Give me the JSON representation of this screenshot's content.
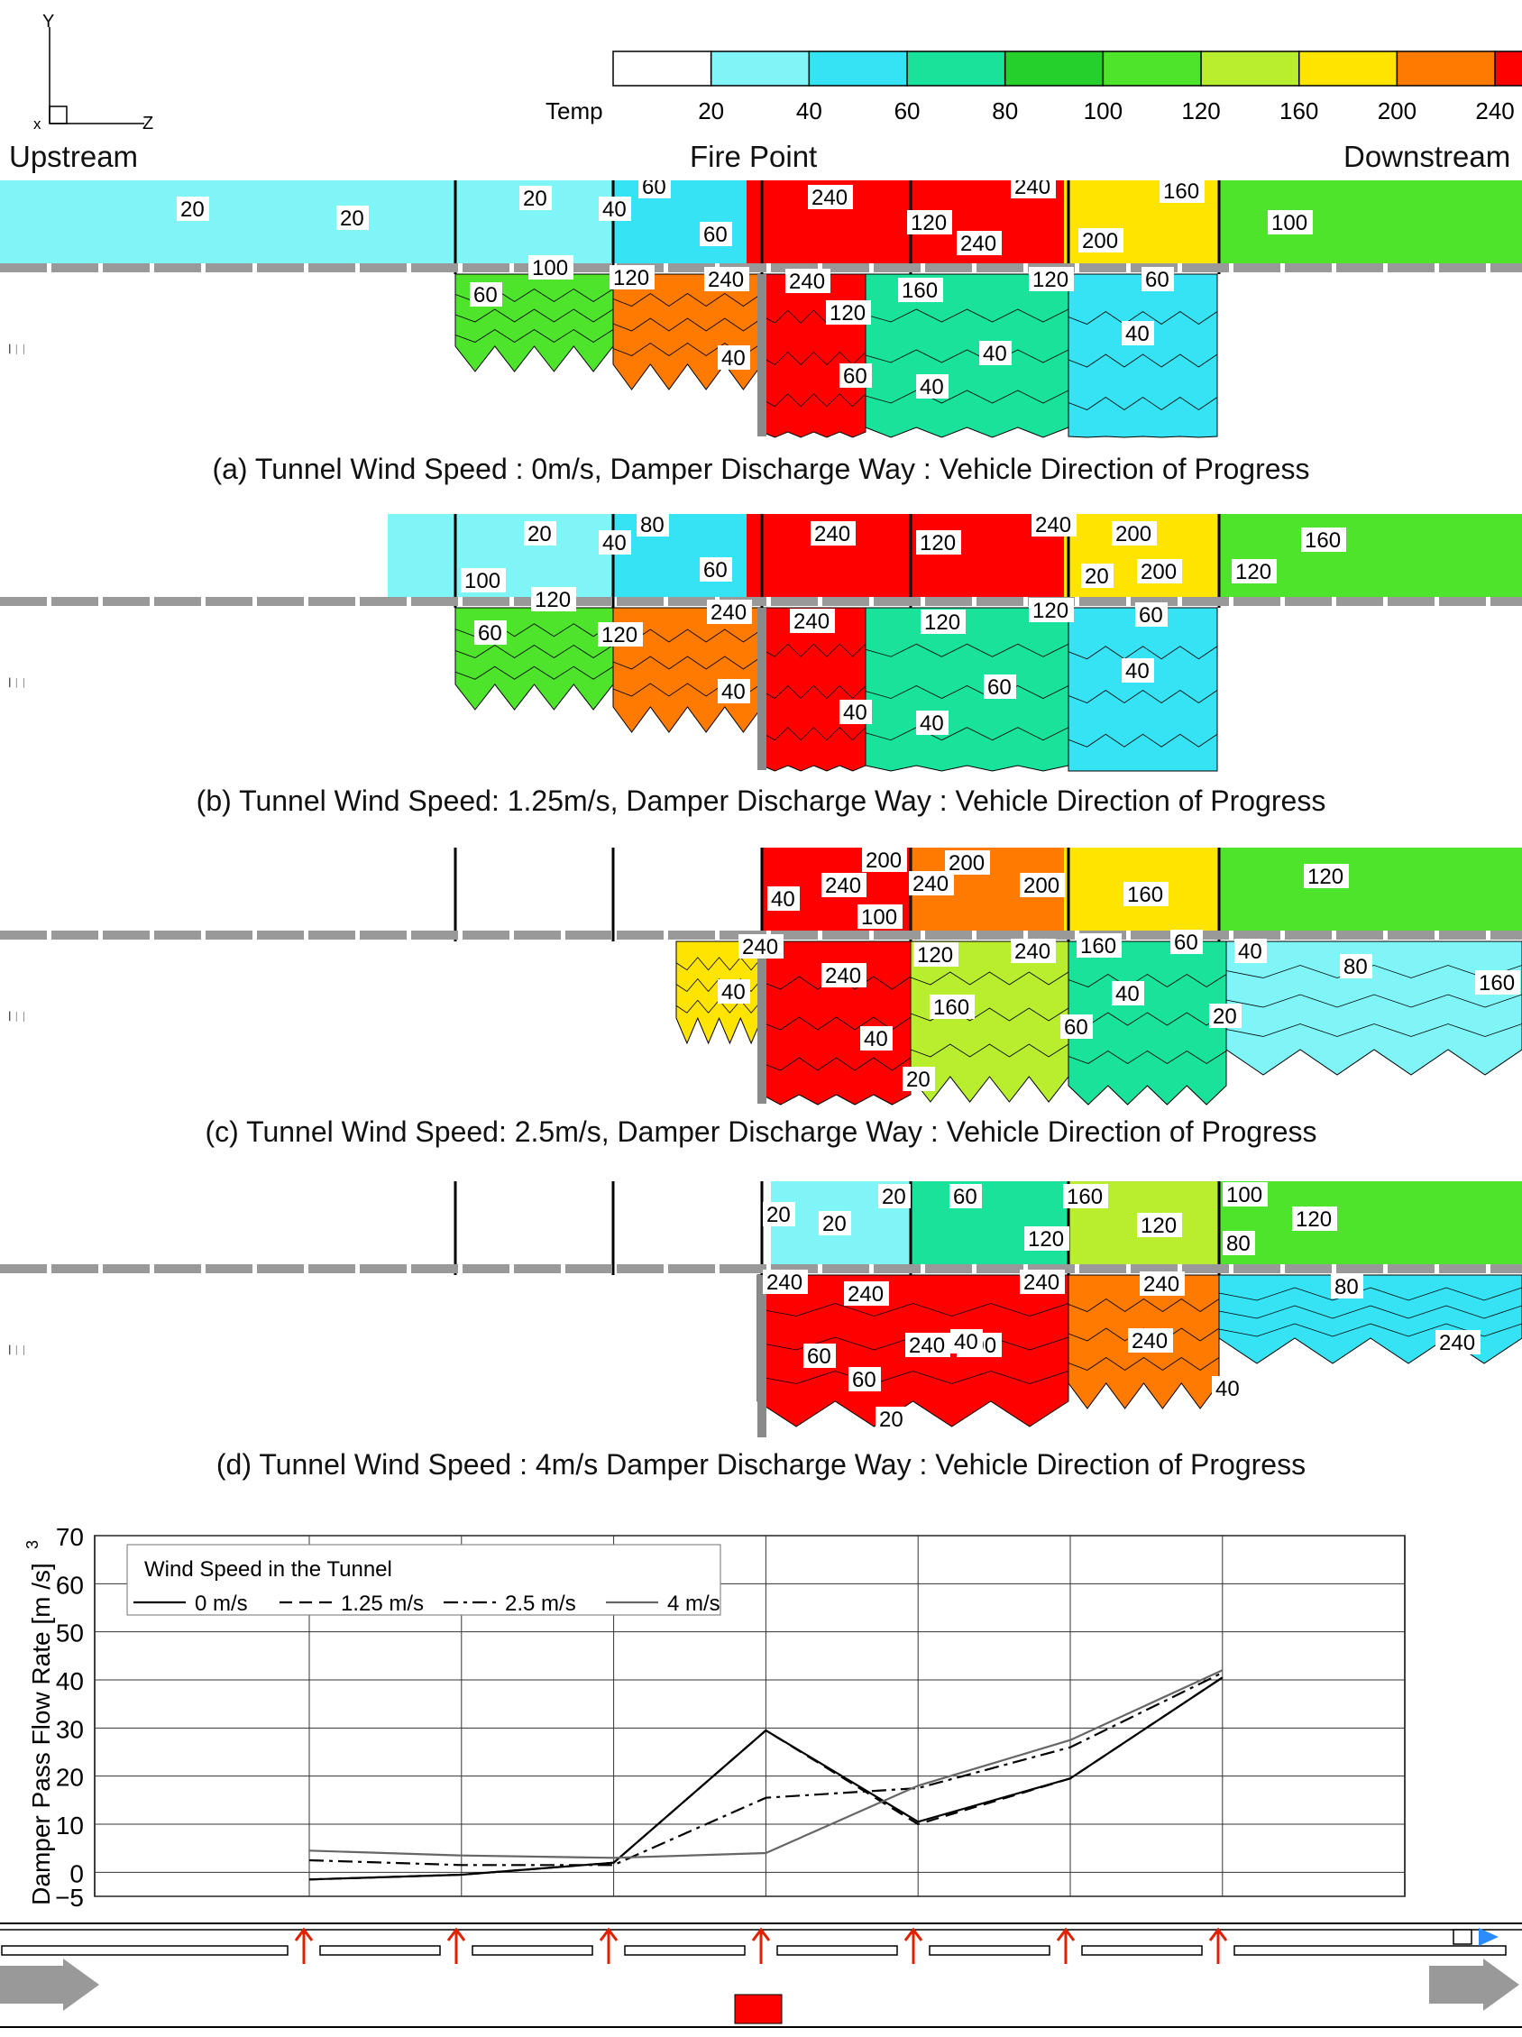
{
  "header": {
    "upstream": "Upstream",
    "fire_point": "Fire Point",
    "downstream": "Downstream",
    "axis_y": "Y",
    "axis_x": "x",
    "axis_z": "Z"
  },
  "legend": {
    "label": "Temp",
    "ticks": [
      "20",
      "40",
      "60",
      "80",
      "100",
      "120",
      "160",
      "200",
      "240"
    ],
    "colors": [
      "#ffffff",
      "#7ff5f7",
      "#36e3f4",
      "#19e39a",
      "#25d02d",
      "#4fe42c",
      "#b9ee2f",
      "#ffe400",
      "#ff7a00",
      "#ff0000"
    ]
  },
  "panels": [
    {
      "caption": "(a) Tunnel Wind Speed : 0m/s, Damper Discharge Way : Vehicle Direction of Progress",
      "labels": [
        "20",
        "20",
        "20",
        "40",
        "60",
        "60",
        "240",
        "120",
        "240",
        "240",
        "200",
        "160",
        "100",
        "100",
        "120",
        "240",
        "240",
        "120",
        "160",
        "120",
        "60",
        "60",
        "40",
        "40",
        "40",
        "60",
        "40"
      ]
    },
    {
      "caption": "(b)  Tunnel Wind Speed: 1.25m/s, Damper Discharge Way : Vehicle Direction of Progress",
      "labels": [
        "20",
        "40",
        "80",
        "60",
        "240",
        "120",
        "240",
        "200",
        "160",
        "100",
        "20",
        "200",
        "120",
        "120",
        "120",
        "240",
        "240",
        "120",
        "120",
        "60",
        "60",
        "40",
        "40",
        "60",
        "40",
        "40"
      ]
    },
    {
      "caption": "(c)  Tunnel Wind Speed: 2.5m/s, Damper Discharge Way : Vehicle Direction of Progress",
      "labels": [
        "40",
        "240",
        "200",
        "240",
        "200",
        "200",
        "160",
        "120",
        "100",
        "240",
        "40",
        "240",
        "120",
        "240",
        "160",
        "160",
        "60",
        "40",
        "40",
        "80",
        "160",
        "60",
        "40",
        "20",
        "20"
      ]
    },
    {
      "caption": "(d)  Tunnel Wind Speed : 4m/s Damper Discharge Way : Vehicle Direction of Progress",
      "labels": [
        "20",
        "20",
        "20",
        "60",
        "160",
        "100",
        "120",
        "120",
        "80",
        "120",
        "240",
        "240",
        "240",
        "240",
        "240",
        "240",
        "80",
        "240",
        "200",
        "60",
        "60",
        "40",
        "40",
        "20"
      ]
    }
  ],
  "chart_data": {
    "type": "line",
    "title": "",
    "xlabel": "",
    "ylabel": "Damper Pass Flow Rate [m /s]",
    "ylabel_sup": "3",
    "ylim": [
      -5,
      70
    ],
    "yticks": [
      "70",
      "60",
      "50",
      "40",
      "30",
      "20",
      "10",
      "0",
      "−5"
    ],
    "x": [
      1,
      2,
      3,
      4,
      5,
      6,
      7
    ],
    "legend_title": "Wind Speed in the Tunnel",
    "legend_position": "top-left",
    "grid": true,
    "series": [
      {
        "name": "0 m/s",
        "style": "solid",
        "color": "#000000",
        "values": [
          -1.5,
          -0.5,
          2,
          29.5,
          10.5,
          19.5,
          40.5
        ]
      },
      {
        "name": "1.25 m/s",
        "style": "dashed",
        "color": "#000000",
        "values": [
          -1.5,
          -0.5,
          2,
          29.5,
          10,
          19.5,
          40.5
        ]
      },
      {
        "name": "2.5 m/s",
        "style": "dashdot",
        "color": "#000000",
        "values": [
          2.5,
          1.5,
          1.5,
          15.5,
          17.5,
          26,
          41.5
        ]
      },
      {
        "name": "4 m/s",
        "style": "solid",
        "color": "#666666",
        "values": [
          4.5,
          3.5,
          3,
          4,
          18,
          27.5,
          42
        ]
      }
    ]
  }
}
